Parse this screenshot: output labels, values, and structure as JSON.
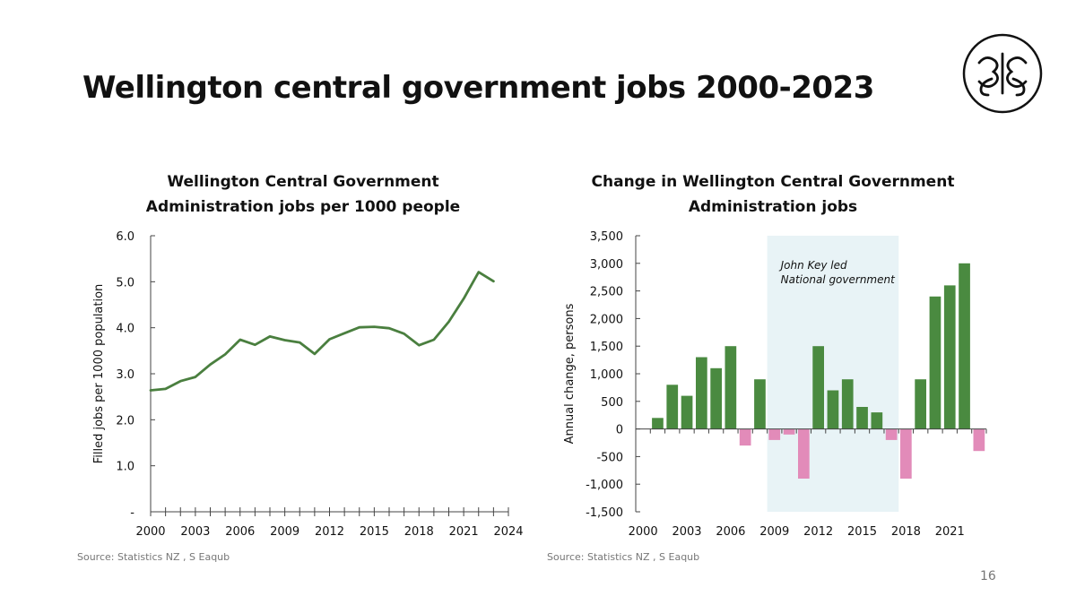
{
  "slide": {
    "title": "Wellington central government jobs 2000-2023",
    "page_number": "16",
    "logo_icon": "ornamental-monogram-logo"
  },
  "colors": {
    "line": "#4a7f3f",
    "bar_positive": "#4a8a40",
    "bar_negative": "#e28bb9",
    "shade": "#e8f3f6",
    "axis": "#444444"
  },
  "chart_data": [
    {
      "type": "line",
      "title_lines": [
        "Wellington Central Government",
        "Administration jobs per 1000 people"
      ],
      "xlabel": "",
      "ylabel": "Filled jobs per 1000 population",
      "xlim": [
        2000,
        2024
      ],
      "ylim": [
        0,
        6
      ],
      "x_ticks": [
        2000,
        2003,
        2006,
        2009,
        2012,
        2015,
        2018,
        2021,
        2024
      ],
      "x_tick_labels": [
        "2000",
        "2003",
        "2006",
        "2009",
        "2012",
        "2015",
        "2018",
        "2021",
        "2024"
      ],
      "y_ticks": [
        0,
        1,
        2,
        3,
        4,
        5,
        6
      ],
      "y_tick_labels": [
        "-",
        "1.0",
        "2.0",
        "3.0",
        "4.0",
        "5.0",
        "6.0"
      ],
      "grid": false,
      "legend": "none",
      "source": "Source: Statistics NZ , S Eaqub",
      "x": [
        2000,
        2001,
        2002,
        2003,
        2004,
        2005,
        2006,
        2007,
        2008,
        2009,
        2010,
        2011,
        2012,
        2013,
        2014,
        2015,
        2016,
        2017,
        2018,
        2019,
        2020,
        2021,
        2022,
        2023
      ],
      "values": [
        2.64,
        2.67,
        2.84,
        2.93,
        3.2,
        3.42,
        3.74,
        3.63,
        3.81,
        3.73,
        3.68,
        3.43,
        3.75,
        3.88,
        4.01,
        4.02,
        3.99,
        3.87,
        3.62,
        3.74,
        4.13,
        4.63,
        5.21,
        5.01
      ]
    },
    {
      "type": "bar",
      "title_lines": [
        "Change in Wellington Central Government",
        "Administration jobs"
      ],
      "xlabel": "",
      "ylabel": "Annual change, persons",
      "xlim": [
        1999.5,
        2023.5
      ],
      "ylim": [
        -1500,
        3500
      ],
      "x_ticks": [
        2000,
        2003,
        2006,
        2009,
        2012,
        2015,
        2018,
        2021
      ],
      "x_tick_labels": [
        "2000",
        "2003",
        "2006",
        "2009",
        "2012",
        "2015",
        "2018",
        "2021"
      ],
      "y_ticks": [
        -1500,
        -1000,
        -500,
        0,
        500,
        1000,
        1500,
        2000,
        2500,
        3000,
        3500
      ],
      "y_tick_labels": [
        "-1,500",
        "-1,000",
        "-500",
        "0",
        "500",
        "1,000",
        "1,500",
        "2,000",
        "2,500",
        "3,000",
        "3,500"
      ],
      "grid": false,
      "legend": "none",
      "source": "Source: Statistics NZ , S Eaqub",
      "annotation": {
        "text_lines": [
          "John Key led",
          "National government"
        ],
        "x_range": [
          2008.5,
          2017.5
        ]
      },
      "categories": [
        2001,
        2002,
        2003,
        2004,
        2005,
        2006,
        2007,
        2008,
        2009,
        2010,
        2011,
        2012,
        2013,
        2014,
        2015,
        2016,
        2017,
        2018,
        2019,
        2020,
        2021,
        2022,
        2023
      ],
      "values": [
        200,
        800,
        600,
        1300,
        1100,
        1500,
        -300,
        900,
        -200,
        -100,
        -900,
        1500,
        700,
        900,
        400,
        300,
        -200,
        -900,
        900,
        2400,
        2600,
        3000,
        -400
      ]
    }
  ]
}
